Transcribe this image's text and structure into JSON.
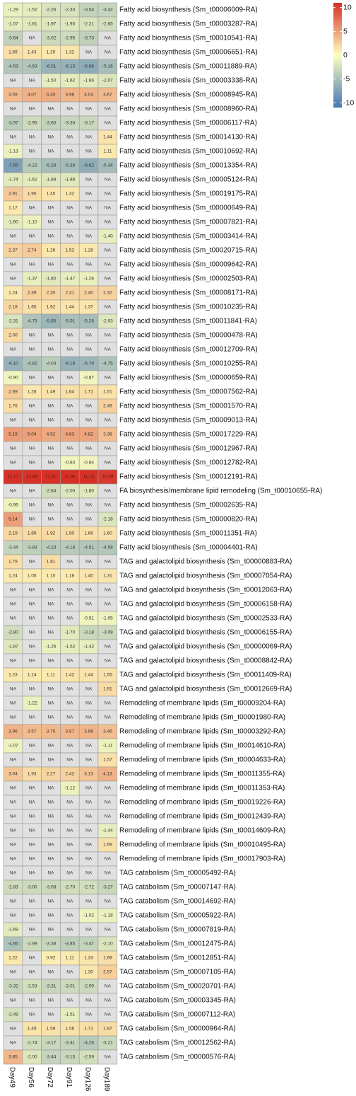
{
  "chart_data": {
    "type": "heatmap",
    "columns": [
      "Day49",
      "Day56",
      "Day72",
      "Day91",
      "Day126",
      "Day189"
    ],
    "color_scale": {
      "min": -11,
      "max": 11,
      "low_color": "#4575b4",
      "mid_color": "#ffffbf",
      "high_color": "#d73027",
      "na_color": "#e0e0e0",
      "ticks": [
        10,
        5,
        0,
        -5,
        -10
      ]
    },
    "rows": [
      {
        "label": "Fatty acid biosynthesis (Sm_t00006009-RA)",
        "values": [
          "-1.29",
          "-1.52",
          "-2.26",
          "-2.33",
          "-3.54",
          "-3.42"
        ]
      },
      {
        "label": "Fatty acid biosynthesis (Sm_t00003287-RA)",
        "values": [
          "-1.57",
          "-1.81",
          "-1.97",
          "-1.93",
          "-2.21",
          "-2.65"
        ]
      },
      {
        "label": "Fatty acid biosynthesis (Sm_t00010541-RA)",
        "values": [
          "-3.64",
          "NA",
          "-3.02",
          "-2.95",
          "-3.73",
          "NA"
        ]
      },
      {
        "label": "Fatty acid biosynthesis (Sm_t00006651-RA)",
        "values": [
          "1.69",
          "1.43",
          "1.20",
          "1.32",
          "NA",
          "NA"
        ]
      },
      {
        "label": "Fatty acid biosynthesis (Sm_t00011889-RA)",
        "values": [
          "-4.53",
          "-4.63",
          "-6.01",
          "-6.13",
          "-6.66",
          "-5.16"
        ]
      },
      {
        "label": "Fatty acid biosynthesis (Sm_t00003338-RA)",
        "values": [
          "NA",
          "NA",
          "-1.50",
          "-1.62",
          "-1.66",
          "-2.07"
        ]
      },
      {
        "label": "Fatty acid biosynthesis (Sm_t00008945-RA)",
        "values": [
          "3.59",
          "4.07",
          "4.40",
          "3.98",
          "4.03",
          "3.67"
        ]
      },
      {
        "label": "Fatty acid biosynthesis (Sm_t00008960-RA)",
        "values": [
          "NA",
          "NA",
          "NA",
          "NA",
          "NA",
          "NA"
        ]
      },
      {
        "label": "Fatty acid biosynthesis (Sm_t00006117-RA)",
        "values": [
          "-3.97",
          "-2.95",
          "-3.60",
          "-3.30",
          "-3.17",
          "NA"
        ]
      },
      {
        "label": "Fatty acid biosynthesis (Sm_t00014130-RA)",
        "values": [
          "NA",
          "NA",
          "NA",
          "NA",
          "NA",
          "1.44"
        ]
      },
      {
        "label": "Fatty acid biosynthesis (Sm_t00010692-RA)",
        "values": [
          "-1.13",
          "NA",
          "NA",
          "NA",
          "NA",
          "1.11"
        ]
      },
      {
        "label": "Fatty acid biosynthesis (Sm_t00013354-RA)",
        "values": [
          "-7.55",
          "-4.22",
          "-5.28",
          "-5.38",
          "-6.62",
          "-5.34"
        ]
      },
      {
        "label": "Fatty acid biosynthesis (Sm_t00005124-RA)",
        "values": [
          "-1.74",
          "-1.62",
          "-1.89",
          "-1.88",
          "NA",
          "NA"
        ]
      },
      {
        "label": "Fatty acid biosynthesis (Sm_t00019175-RA)",
        "values": [
          "2.91",
          "1.95",
          "1.45",
          "1.32",
          "NA",
          "NA"
        ]
      },
      {
        "label": "Fatty acid biosynthesis (Sm_t00000649-RA)",
        "values": [
          "1.17",
          "NA",
          "NA",
          "NA",
          "NA",
          "NA"
        ]
      },
      {
        "label": "Fatty acid biosynthesis (Sm_t00007821-RA)",
        "values": [
          "-1.60",
          "-1.10",
          "NA",
          "NA",
          "NA",
          "NA"
        ]
      },
      {
        "label": "Fatty acid biosynthesis (Sm_t00003414-RA)",
        "values": [
          "NA",
          "NA",
          "NA",
          "NA",
          "NA",
          "-1.40"
        ]
      },
      {
        "label": "Fatty acid biosynthesis (Sm_t00020715-RA)",
        "values": [
          "2.37",
          "2.74",
          "1.26",
          "1.52",
          "1.28",
          "NA"
        ]
      },
      {
        "label": "Fatty acid biosynthesis (Sm_t00009642-RA)",
        "values": [
          "NA",
          "NA",
          "NA",
          "NA",
          "NA",
          "NA"
        ]
      },
      {
        "label": "Fatty acid biosynthesis (Sm_t00002503-RA)",
        "values": [
          "NA",
          "-1.37",
          "-1.80",
          "-1.47",
          "-1.26",
          "NA"
        ]
      },
      {
        "label": "Fatty acid biosynthesis (Sm_t00008171-RA)",
        "values": [
          "1.24",
          "2.39",
          "2.30",
          "2.31",
          "2.40",
          "2.32"
        ]
      },
      {
        "label": "Fatty acid biosynthesis (Sm_t00010235-RA)",
        "values": [
          "2.18",
          "1.65",
          "1.62",
          "1.44",
          "1.37",
          "NA"
        ]
      },
      {
        "label": "Fatty acid biosynthesis (Sm_t00011841-RA)",
        "values": [
          "-2.31",
          "-4.75",
          "-5.85",
          "-5.01",
          "-5.26",
          "-2.03"
        ]
      },
      {
        "label": "Fatty acid biosynthesis (Sm_t00000478-RA)",
        "values": [
          "2.00",
          "NA",
          "NA",
          "NA",
          "NA",
          "NA"
        ]
      },
      {
        "label": "Fatty acid biosynthesis (Sm_t00012709-RA)",
        "values": [
          "NA",
          "NA",
          "NA",
          "NA",
          "NA",
          "NA"
        ]
      },
      {
        "label": "Fatty acid biosynthesis (Sm_t00010255-RA)",
        "values": [
          "-6.10",
          "-4.82",
          "-4.04",
          "-6.16",
          "-5.79",
          "-4.75"
        ]
      },
      {
        "label": "Fatty acid biosynthesis (Sm_t00000659-RA)",
        "values": [
          "-0.90",
          "NA",
          "NA",
          "NA",
          "-0.87",
          "NA"
        ]
      },
      {
        "label": "Fatty acid biosynthesis (Sm_t00007562-RA)",
        "values": [
          "2.69",
          "1.28",
          "1.49",
          "1.64",
          "1.71",
          "1.51"
        ]
      },
      {
        "label": "Fatty acid biosynthesis (Sm_t00001570-RA)",
        "values": [
          "1.76",
          "NA",
          "NA",
          "NA",
          "NA",
          "2.49"
        ]
      },
      {
        "label": "Fatty acid biosynthesis (Sm_t00009013-RA)",
        "values": [
          "NA",
          "NA",
          "NA",
          "NA",
          "NA",
          "NA"
        ]
      },
      {
        "label": "Fatty acid biosynthesis (Sm_t00017229-RA)",
        "values": [
          "5.19",
          "5.04",
          "4.52",
          "4.83",
          "4.82",
          "3.38"
        ]
      },
      {
        "label": "Fatty acid biosynthesis (Sm_t00012967-RA)",
        "values": [
          "NA",
          "NA",
          "NA",
          "NA",
          "NA",
          "NA"
        ]
      },
      {
        "label": "Fatty acid biosynthesis (Sm_t00012782-RA)",
        "values": [
          "NA",
          "NA",
          "NA",
          "-0.83",
          "-0.84",
          "NA"
        ]
      },
      {
        "label": "Fatty acid biosynthesis (Sm_t00012191-RA)",
        "values": [
          "11.17",
          "10.89",
          "11.20",
          "11.05",
          "11.15",
          "10.58"
        ]
      },
      {
        "label": "FA biosynthesis/membrane lipid remodeling (Sm_t00010655-RA)",
        "values": [
          "NA",
          "NA",
          "-2.84",
          "-2.00",
          "-1.80",
          "NA"
        ]
      },
      {
        "label": "Fatty acid biosynthesis (Sm_t00002635-RA)",
        "values": [
          "-0.99",
          "NA",
          "NA",
          "NA",
          "NA",
          "NA"
        ]
      },
      {
        "label": "Fatty acid biosynthesis (Sm_t00000820-RA)",
        "values": [
          "5.14",
          "NA",
          "NA",
          "NA",
          "NA",
          "-2.18"
        ]
      },
      {
        "label": "Fatty acid biosynthesis (Sm_t00011351-RA)",
        "values": [
          "2.19",
          "1.89",
          "1.92",
          "1.90",
          "1.66",
          "1.60"
        ]
      },
      {
        "label": "Fatty acid biosynthesis (Sm_t00004401-RA)",
        "values": [
          "-3.44",
          "-3.83",
          "-4.23",
          "-4.18",
          "-4.51",
          "-4.58"
        ]
      },
      {
        "label": "TAG and galactolipid biosynthesis (Sm_t00000883-RA)",
        "values": [
          "1.79",
          "NA",
          "1.81",
          "NA",
          "NA",
          "NA"
        ]
      },
      {
        "label": "TAG and galactolipid biosynthesis (Sm_t00007054-RA)",
        "values": [
          "1.24",
          "1.05",
          "1.10",
          "1.18",
          "1.40",
          "1.31"
        ]
      },
      {
        "label": "TAG and galactolipid biosynthesis (Sm_t00012063-RA)",
        "values": [
          "NA",
          "NA",
          "NA",
          "NA",
          "NA",
          "NA"
        ]
      },
      {
        "label": "TAG and galactolipid biosynthesis (Sm_t00006158-RA)",
        "values": [
          "NA",
          "NA",
          "NA",
          "NA",
          "NA",
          "NA"
        ]
      },
      {
        "label": "TAG and galactolipid biosynthesis (Sm_t00002533-RA)",
        "values": [
          "NA",
          "NA",
          "NA",
          "NA",
          "-0.91",
          "-1.05"
        ]
      },
      {
        "label": "TAG and galactolipid biosynthesis (Sm_t00006155-RA)",
        "values": [
          "-2.80",
          "NA",
          "NA",
          "-1.70",
          "-3.18",
          "-3.09"
        ]
      },
      {
        "label": "TAG and galactolipid biosynthesis (Sm_t00000069-RA)",
        "values": [
          "-1.87",
          "NA",
          "-1.26",
          "-1.52",
          "-1.42",
          "NA"
        ]
      },
      {
        "label": "TAG and galactolipid biosynthesis (Sm_t00008842-RA)",
        "values": [
          "NA",
          "NA",
          "NA",
          "NA",
          "NA",
          "NA"
        ]
      },
      {
        "label": "TAG and galactolipid biosynthesis (Sm_t00011409-RA)",
        "values": [
          "1.23",
          "1.14",
          "1.11",
          "1.42",
          "1.44",
          "1.55"
        ]
      },
      {
        "label": "TAG and galactolipid biosynthesis (Sm_t00012669-RA)",
        "values": [
          "NA",
          "NA",
          "NA",
          "NA",
          "NA",
          "1.91"
        ]
      },
      {
        "label": "Remodeling of membrane lipids (Sm_t00009204-RA)",
        "values": [
          "NA",
          "-1.22",
          "NA",
          "NA",
          "NA",
          "NA"
        ]
      },
      {
        "label": "Remodeling of membrane lipids (Sm_t00001980-RA)",
        "values": [
          "NA",
          "NA",
          "NA",
          "NA",
          "NA",
          "NA"
        ]
      },
      {
        "label": "Remodeling of membrane lipids (Sm_t00003292-RA)",
        "values": [
          "3.96",
          "3.57",
          "3.75",
          "3.87",
          "3.96",
          "3.46"
        ]
      },
      {
        "label": "Remodeling of membrane lipids (Sm_t00014610-RA)",
        "values": [
          "-1.07",
          "NA",
          "NA",
          "NA",
          "NA",
          "-1.11"
        ]
      },
      {
        "label": "Remodeling of membrane lipids (Sm_t00004633-RA)",
        "values": [
          "NA",
          "NA",
          "NA",
          "NA",
          "NA",
          "1.57"
        ]
      },
      {
        "label": "Remodeling of membrane lipids (Sm_t00011355-RA)",
        "values": [
          "3.04",
          "1.93",
          "2.27",
          "2.42",
          "3.13",
          "4.13"
        ]
      },
      {
        "label": "Remodeling of membrane lipids (Sm_t00011353-RA)",
        "values": [
          "NA",
          "NA",
          "NA",
          "-1.12",
          "NA",
          "NA"
        ]
      },
      {
        "label": "Remodeling of membrane lipids (Sm_t00019226-RA)",
        "values": [
          "NA",
          "NA",
          "NA",
          "NA",
          "NA",
          "NA"
        ]
      },
      {
        "label": "Remodeling of membrane lipids (Sm_t00012439-RA)",
        "values": [
          "NA",
          "NA",
          "NA",
          "NA",
          "NA",
          "NA"
        ]
      },
      {
        "label": "Remodeling of membrane lipids (Sm_t00014609-RA)",
        "values": [
          "NA",
          "NA",
          "NA",
          "NA",
          "NA",
          "-1.44"
        ]
      },
      {
        "label": "Remodeling of membrane lipids (Sm_t00010495-RA)",
        "values": [
          "NA",
          "NA",
          "NA",
          "NA",
          "NA",
          "1.69"
        ]
      },
      {
        "label": "Remodeling of membrane lipids (Sm_t00017903-RA)",
        "values": [
          "NA",
          "NA",
          "NA",
          "NA",
          "NA",
          "NA"
        ]
      },
      {
        "label": "TAG catabolism (Sm_t00005492-RA)",
        "values": [
          "NA",
          "NA",
          "NA",
          "NA",
          "NA",
          "NA"
        ]
      },
      {
        "label": "TAG catabolism (Sm_t00007147-RA)",
        "values": [
          "-2.83",
          "-3.00",
          "-3.08",
          "-2.70",
          "-2.72",
          "-3.27"
        ]
      },
      {
        "label": "TAG catabolism (Sm_t00014692-RA)",
        "values": [
          "NA",
          "NA",
          "NA",
          "NA",
          "NA",
          "NA"
        ]
      },
      {
        "label": "TAG catabolism (Sm_t00005922-RA)",
        "values": [
          "NA",
          "NA",
          "NA",
          "NA",
          "-1.02",
          "-1.18"
        ]
      },
      {
        "label": "TAG catabolism (Sm_t00007819-RA)",
        "values": [
          "-1.69",
          "NA",
          "NA",
          "NA",
          "NA",
          "NA"
        ]
      },
      {
        "label": "TAG catabolism (Sm_t00012475-RA)",
        "values": [
          "-4.85",
          "-2.99",
          "-3.38",
          "-3.85",
          "-3.47",
          "-2.10"
        ]
      },
      {
        "label": "TAG catabolism (Sm_t00012851-RA)",
        "values": [
          "1.22",
          "NA",
          "0.92",
          "1.11",
          "1.33",
          "1.69"
        ]
      },
      {
        "label": "TAG catabolism (Sm_t00007105-RA)",
        "values": [
          "NA",
          "NA",
          "NA",
          "NA",
          "1.30",
          "2.57"
        ]
      },
      {
        "label": "TAG catabolism (Sm_t00020701-RA)",
        "values": [
          "-3.32",
          "-2.53",
          "-3.31",
          "-3.01",
          "-2.99",
          "NA"
        ]
      },
      {
        "label": "TAG catabolism (Sm_t00003345-RA)",
        "values": [
          "NA",
          "NA",
          "NA",
          "NA",
          "NA",
          "NA"
        ]
      },
      {
        "label": "TAG catabolism (Sm_t00007112-RA)",
        "values": [
          "-2.49",
          "NA",
          "NA",
          "-1.51",
          "NA",
          "NA"
        ]
      },
      {
        "label": "TAG catabolism (Sm_t00000964-RA)",
        "values": [
          "NA",
          "1.49",
          "1.59",
          "1.56",
          "1.71",
          "1.87"
        ]
      },
      {
        "label": "TAG catabolism (Sm_t00012562-RA)",
        "values": [
          "NA",
          "-2.74",
          "-3.17",
          "-3.41",
          "-4.26",
          "-3.21"
        ]
      },
      {
        "label": "TAG catabolism (Sm_t00000576-RA)",
        "values": [
          "3.85",
          "-2.00",
          "-3.44",
          "-3.15",
          "-2.59",
          "NA"
        ]
      }
    ]
  }
}
